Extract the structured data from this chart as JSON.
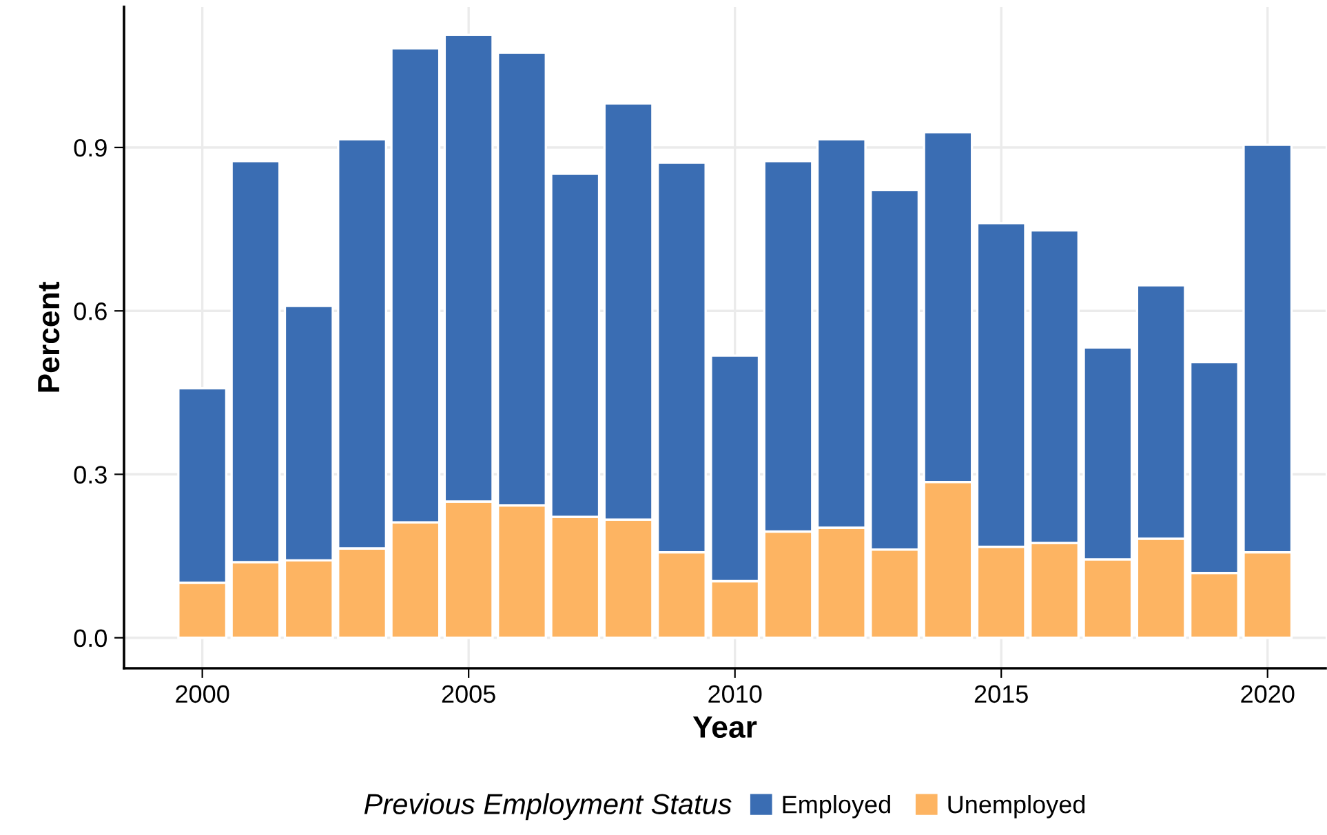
{
  "chart_data": {
    "type": "bar",
    "stacked": true,
    "xlabel": "Year",
    "ylabel": "Percent",
    "legend_title": "Previous Employment Status",
    "legend": "bottom",
    "grid": true,
    "x": [
      2000,
      2001,
      2002,
      2003,
      2004,
      2005,
      2006,
      2007,
      2008,
      2009,
      2010,
      2011,
      2012,
      2013,
      2014,
      2015,
      2016,
      2017,
      2018,
      2019,
      2020
    ],
    "series": [
      {
        "name": "Unemployed",
        "color": "#fdb462",
        "values": [
          0.101,
          0.139,
          0.142,
          0.164,
          0.212,
          0.25,
          0.243,
          0.222,
          0.217,
          0.157,
          0.104,
          0.195,
          0.202,
          0.162,
          0.286,
          0.167,
          0.174,
          0.144,
          0.182,
          0.119,
          0.157
        ]
      },
      {
        "name": "Employed",
        "color": "#3a6db3",
        "values": [
          0.357,
          0.736,
          0.467,
          0.751,
          0.87,
          0.857,
          0.831,
          0.63,
          0.764,
          0.715,
          0.414,
          0.68,
          0.713,
          0.66,
          0.642,
          0.594,
          0.574,
          0.389,
          0.465,
          0.387,
          0.748
        ]
      }
    ],
    "xlim": [
      1998.53,
      2021.09
    ],
    "ylim": [
      -0.056,
      1.158
    ],
    "xticks": [
      2000,
      2005,
      2010,
      2015,
      2020
    ],
    "yticks": [
      {
        "value": 0,
        "label": "0.0"
      },
      {
        "value": 0.3,
        "label": "0.3"
      },
      {
        "value": 0.6,
        "label": "0.6"
      },
      {
        "value": 0.9,
        "label": "0.9"
      }
    ]
  }
}
